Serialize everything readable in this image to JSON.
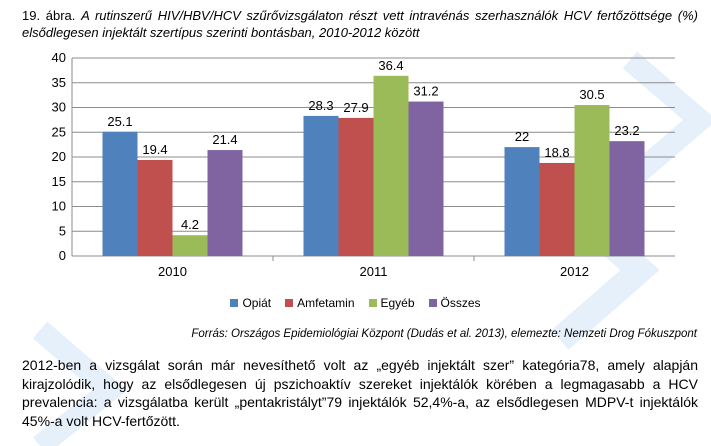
{
  "caption": {
    "lead": "19. ábra.",
    "title": "A rutinszerű HIV/HBV/HCV szűrővizsgálaton részt vett intravénás szerhasználók HCV fertőzöttsége (%) elsődlegesen injektált szertípus szerinti bontásban, 2010-2012 között"
  },
  "chart_data": {
    "type": "bar",
    "categories": [
      "2010",
      "2011",
      "2012"
    ],
    "series": [
      {
        "name": "Opiát",
        "color": "#4F81BD",
        "values": [
          25.1,
          28.3,
          22
        ]
      },
      {
        "name": "Amfetamin",
        "color": "#C0504D",
        "values": [
          19.4,
          27.9,
          18.8
        ]
      },
      {
        "name": "Egyéb",
        "color": "#9BBB59",
        "values": [
          4.2,
          36.4,
          30.5
        ]
      },
      {
        "name": "Összes",
        "color": "#8064A2",
        "values": [
          21.4,
          31.2,
          23.2
        ]
      }
    ],
    "data_labels": [
      [
        "25.1",
        "28.3",
        "22"
      ],
      [
        "19.4",
        "27.9",
        "18.8"
      ],
      [
        "4.2",
        "36.4",
        "30.5"
      ],
      [
        "21.4",
        "31.2",
        "23.2"
      ]
    ],
    "yticks": [
      "0",
      "5",
      "10",
      "15",
      "20",
      "25",
      "30",
      "35",
      "40"
    ],
    "ylim": [
      0,
      40
    ],
    "grid": true,
    "legend_position": "bottom"
  },
  "source": "Forrás: Országos Epidemiológiai Központ (Dudás et al. 2013), elemezte: Nemzeti Drog Fókuszpont",
  "body_text": "2012-ben a vizsgálat során már nevesíthető volt az „egyéb injektált szer” kategória78, amely alapján kirajzolódik, hogy az elsődlegesen új pszichoaktív szereket injektálók körében a legmagasabb a HCV prevalencia: a vizsgálatba került „pentakristályt”79 injektálók 52,4%-a, az elsődlegesen MDPV-t injektálók 45%-a volt HCV-fertőzött."
}
